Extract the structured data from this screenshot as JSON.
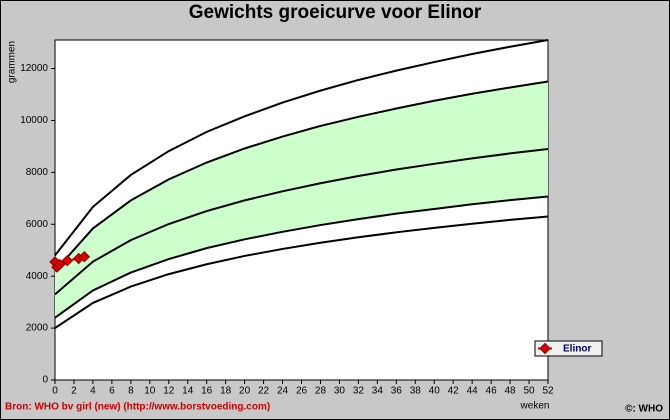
{
  "chart_data": {
    "type": "line",
    "title": "Gewichts groeicurve voor Elinor",
    "x_label": "weken",
    "y_label": "grammen",
    "source": "Bron: WHO bv girl (new) (http://www.borstvoeding.com)",
    "copyright": "©: WHO",
    "xlim": [
      0,
      52
    ],
    "ylim": [
      0,
      13100
    ],
    "xticks": [
      0,
      2,
      4,
      6,
      8,
      10,
      12,
      14,
      16,
      18,
      20,
      22,
      24,
      26,
      28,
      30,
      32,
      34,
      36,
      38,
      40,
      42,
      44,
      46,
      48,
      50,
      52
    ],
    "yticks": [
      0,
      2000,
      4000,
      6000,
      8000,
      10000,
      12000
    ],
    "grid": false,
    "band_color": "#ccffcc",
    "reference_color": "#000000",
    "reference_x": [
      0,
      4,
      8,
      12,
      16,
      20,
      24,
      28,
      32,
      36,
      40,
      44,
      48,
      52
    ],
    "reference_curves": [
      {
        "values": [
          4800,
          6670,
          7900,
          8820,
          9560,
          10160,
          10690,
          11150,
          11560,
          11920,
          12250,
          12560,
          12840,
          13100
        ]
      },
      {
        "values": [
          4200,
          5840,
          6920,
          7730,
          8380,
          8920,
          9380,
          9790,
          10140,
          10460,
          10760,
          11030,
          11270,
          11500
        ]
      },
      {
        "values": [
          3300,
          4560,
          5390,
          6010,
          6510,
          6920,
          7270,
          7580,
          7860,
          8110,
          8330,
          8540,
          8730,
          8900
        ]
      },
      {
        "values": [
          2400,
          3450,
          4140,
          4660,
          5080,
          5420,
          5710,
          5970,
          6200,
          6410,
          6590,
          6770,
          6930,
          7070
        ]
      },
      {
        "values": [
          2000,
          2970,
          3600,
          4080,
          4460,
          4780,
          5050,
          5290,
          5500,
          5690,
          5860,
          6020,
          6170,
          6300
        ]
      }
    ],
    "series": [
      {
        "name": "Elinor",
        "color": "#dd0000",
        "x": [
          0,
          0.2,
          0.5,
          1.3,
          2.5,
          3.1
        ],
        "values": [
          4550,
          4350,
          4450,
          4600,
          4680,
          4750
        ]
      }
    ],
    "legend": "lower right"
  }
}
